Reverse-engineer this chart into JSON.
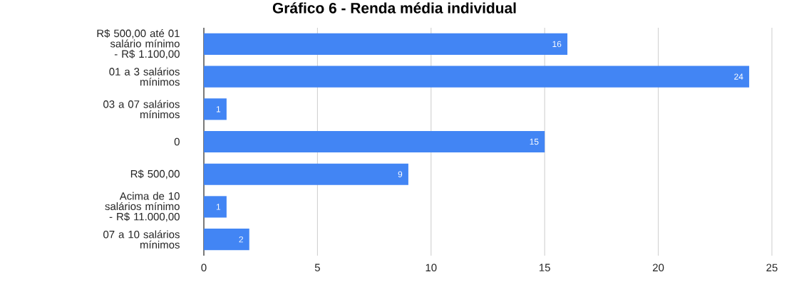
{
  "chart_data": {
    "type": "bar",
    "orientation": "horizontal",
    "title": "Gráfico 6 - Renda média individual",
    "categories": [
      "R$ 500,00 até 01 salário mínimo - R$ 1.100,00",
      "01 a 3 salários mínimos",
      "03 a 07 salários mínimos",
      "0",
      "R$ 500,00",
      "Acima de 10 salários mínimo - R$ 11.000,00",
      "07 a 10 salários mínimos"
    ],
    "values": [
      16,
      24,
      1,
      15,
      9,
      1,
      2
    ],
    "color": "#4285f4",
    "xlim": [
      0,
      25
    ],
    "xticks": [
      0,
      5,
      10,
      15,
      20,
      25
    ],
    "grid": "x",
    "data_labels": true
  }
}
